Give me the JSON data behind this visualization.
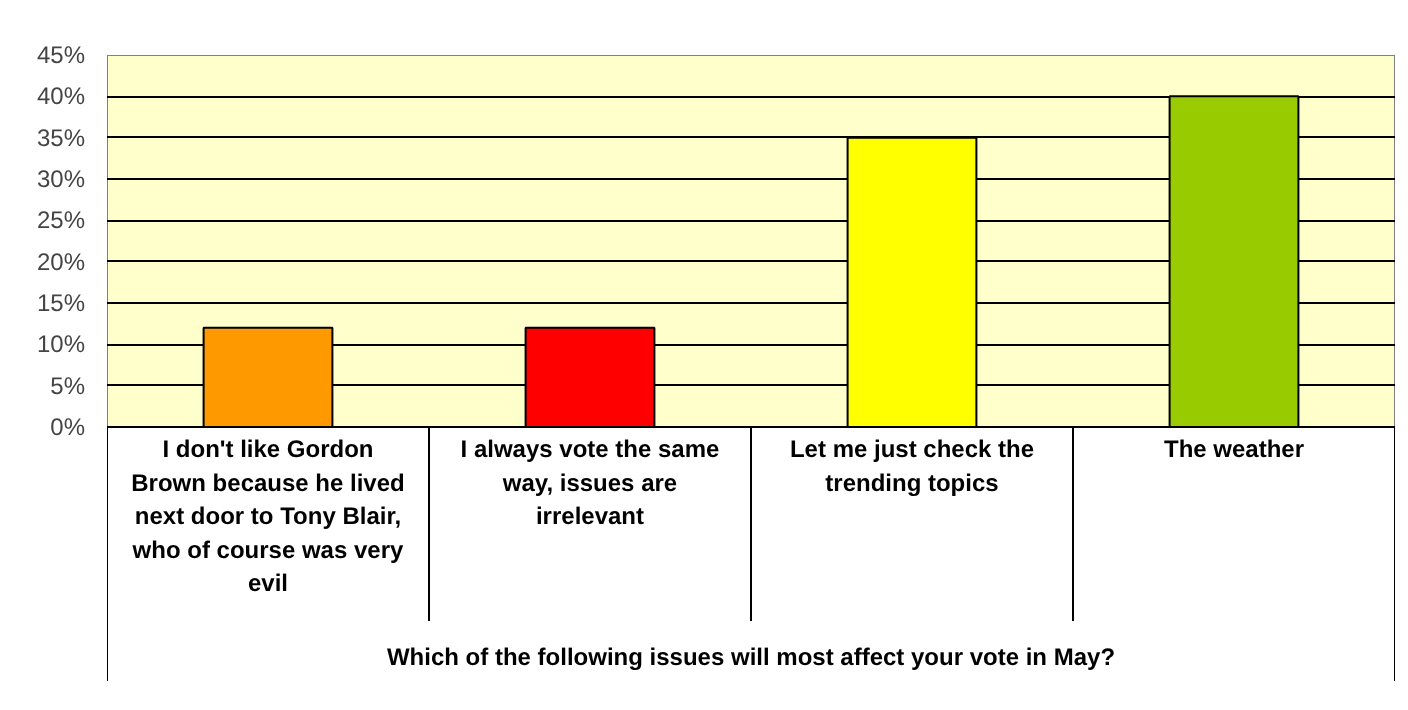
{
  "chart_data": {
    "type": "bar",
    "xlabel": "Which of the following issues will most affect your vote in May?",
    "categories": [
      "I don't like Gordon Brown because he lived next door to Tony Blair, who of course was very evil",
      "I always vote the same way, issues are irrelevant",
      "Let me just check the trending topics",
      "The weather"
    ],
    "values": [
      12,
      12,
      35,
      40
    ],
    "colors": [
      "#ff9900",
      "#ff0000",
      "#ffff00",
      "#99cc00"
    ],
    "ylim": [
      0,
      45
    ],
    "yticks": [
      {
        "value": 0,
        "label": "0%"
      },
      {
        "value": 5,
        "label": "5%"
      },
      {
        "value": 10,
        "label": "10%"
      },
      {
        "value": 15,
        "label": "15%"
      },
      {
        "value": 20,
        "label": "20%"
      },
      {
        "value": 25,
        "label": "25%"
      },
      {
        "value": 30,
        "label": "30%"
      },
      {
        "value": 35,
        "label": "35%"
      },
      {
        "value": 40,
        "label": "40%"
      },
      {
        "value": 45,
        "label": "45%"
      }
    ],
    "grid": "y"
  }
}
